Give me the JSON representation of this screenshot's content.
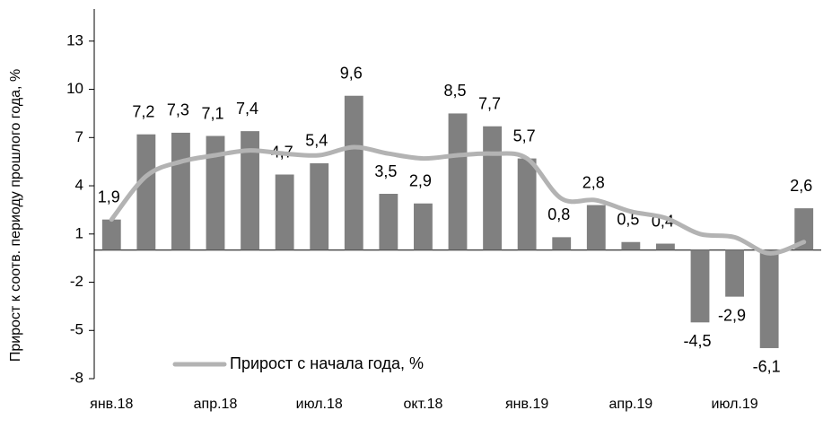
{
  "chart_data": {
    "type": "bar",
    "y_label": "Прирост к соотв. периоду прошлого года, %",
    "categories": [
      "янв.18",
      null,
      null,
      "апр.18",
      null,
      null,
      "июл.18",
      null,
      null,
      "окт.18",
      null,
      null,
      "янв.19",
      null,
      null,
      "апр.19",
      null,
      null,
      "июл.19",
      null,
      null
    ],
    "series": [
      {
        "type": "bar",
        "color": "#808080",
        "values": [
          1.9,
          7.2,
          7.3,
          7.1,
          7.4,
          4.7,
          5.4,
          9.6,
          3.5,
          2.9,
          8.5,
          7.7,
          5.7,
          0.8,
          2.8,
          0.5,
          0.4,
          -4.5,
          -2.9,
          -6.1,
          2.6
        ],
        "value_labels": [
          "1,9",
          "7,2",
          "7,3",
          "7,1",
          "7,4",
          "4,7",
          "5,4",
          "9,6",
          "3,5",
          "2,9",
          "8,5",
          "7,7",
          "5,7",
          "0,8",
          "2,8",
          "0,5",
          "0,4",
          "-4,5",
          "-2,9",
          "-6,1",
          "2,6"
        ]
      },
      {
        "type": "line",
        "name": "Прирост с начала года, %",
        "color": "#b3b3b3",
        "values": [
          1.9,
          4.6,
          5.5,
          5.9,
          6.2,
          6.0,
          5.9,
          6.4,
          6.0,
          5.7,
          5.9,
          6.0,
          5.7,
          3.2,
          3.1,
          2.4,
          2.0,
          1.0,
          0.8,
          -0.2,
          0.5
        ]
      }
    ],
    "ylim": [
      -8,
      15
    ],
    "yticks": [
      -8,
      -5,
      -2,
      1,
      4,
      7,
      10,
      13
    ],
    "legend": "bottom-left"
  }
}
